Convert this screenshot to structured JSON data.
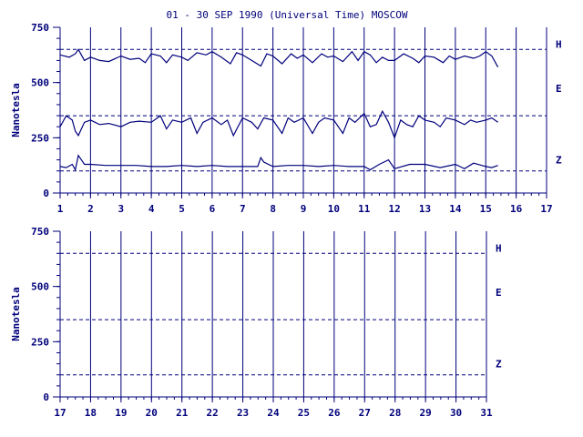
{
  "title": "01 - 30 SEP 1990 (Universal Time) MOSCOW",
  "colors": {
    "ink": "#00007b",
    "background": "#ffffff"
  },
  "chart_data": [
    {
      "type": "line",
      "ylabel": "Nanotesla",
      "xlim": [
        1,
        17
      ],
      "ylim": [
        0,
        750
      ],
      "x_ticks": [
        "1",
        "2",
        "3",
        "4",
        "5",
        "6",
        "7",
        "8",
        "9",
        "10",
        "11",
        "12",
        "13",
        "14",
        "15",
        "16",
        "17"
      ],
      "y_ticks": [
        "0",
        "250",
        "500",
        "750"
      ],
      "grid": "vertical lines at each day",
      "baselines": [
        {
          "name": "H",
          "value": 650
        },
        {
          "name": "E",
          "value": 350
        },
        {
          "name": "Z",
          "value": 100
        }
      ],
      "data_end_x": 15.4,
      "series": [
        {
          "name": "H",
          "x": [
            1.0,
            1.3,
            1.5,
            1.6,
            1.8,
            2.0,
            2.3,
            2.6,
            3.0,
            3.3,
            3.6,
            3.8,
            4.0,
            4.3,
            4.5,
            4.7,
            5.0,
            5.2,
            5.5,
            5.8,
            6.0,
            6.3,
            6.6,
            6.8,
            7.0,
            7.3,
            7.6,
            7.8,
            8.0,
            8.3,
            8.6,
            8.8,
            9.0,
            9.3,
            9.6,
            9.8,
            10.0,
            10.3,
            10.6,
            10.8,
            11.0,
            11.2,
            11.4,
            11.6,
            11.8,
            12.0,
            12.3,
            12.6,
            12.8,
            13.0,
            13.3,
            13.6,
            13.8,
            14.0,
            14.3,
            14.6,
            14.8,
            15.0,
            15.2,
            15.4
          ],
          "values": [
            625,
            615,
            630,
            650,
            600,
            615,
            600,
            595,
            620,
            605,
            610,
            590,
            630,
            620,
            590,
            625,
            615,
            600,
            635,
            625,
            640,
            615,
            585,
            635,
            625,
            600,
            575,
            630,
            620,
            585,
            630,
            610,
            625,
            590,
            630,
            615,
            620,
            595,
            640,
            600,
            640,
            625,
            590,
            615,
            600,
            600,
            630,
            610,
            590,
            620,
            615,
            590,
            620,
            605,
            620,
            610,
            620,
            640,
            620,
            570
          ]
        },
        {
          "name": "E",
          "x": [
            1.0,
            1.2,
            1.4,
            1.5,
            1.6,
            1.8,
            2.0,
            2.3,
            2.6,
            3.0,
            3.3,
            3.6,
            4.0,
            4.3,
            4.5,
            4.7,
            5.0,
            5.3,
            5.5,
            5.7,
            6.0,
            6.3,
            6.5,
            6.7,
            7.0,
            7.3,
            7.5,
            7.7,
            8.0,
            8.3,
            8.5,
            8.7,
            9.0,
            9.3,
            9.5,
            9.7,
            10.0,
            10.3,
            10.5,
            10.7,
            11.0,
            11.2,
            11.4,
            11.6,
            11.8,
            12.0,
            12.2,
            12.4,
            12.6,
            12.8,
            13.0,
            13.3,
            13.5,
            13.7,
            14.0,
            14.3,
            14.5,
            14.7,
            15.0,
            15.2,
            15.4
          ],
          "values": [
            300,
            350,
            330,
            280,
            260,
            320,
            330,
            310,
            315,
            300,
            320,
            325,
            320,
            350,
            290,
            330,
            320,
            340,
            270,
            320,
            340,
            310,
            330,
            260,
            340,
            320,
            290,
            340,
            330,
            270,
            340,
            320,
            340,
            270,
            320,
            340,
            330,
            270,
            340,
            320,
            360,
            300,
            310,
            370,
            320,
            250,
            330,
            310,
            300,
            350,
            330,
            320,
            300,
            340,
            330,
            310,
            330,
            320,
            330,
            340,
            320
          ]
        },
        {
          "name": "Z",
          "x": [
            1.0,
            1.2,
            1.4,
            1.5,
            1.6,
            1.8,
            2.0,
            2.5,
            3.0,
            3.5,
            4.0,
            4.5,
            5.0,
            5.5,
            6.0,
            6.5,
            7.0,
            7.5,
            7.6,
            7.7,
            8.0,
            8.5,
            9.0,
            9.5,
            10.0,
            10.5,
            11.0,
            11.2,
            11.5,
            11.8,
            12.0,
            12.5,
            13.0,
            13.5,
            14.0,
            14.3,
            14.6,
            15.0,
            15.2,
            15.4
          ],
          "values": [
            120,
            115,
            130,
            105,
            170,
            130,
            130,
            125,
            125,
            125,
            120,
            120,
            125,
            120,
            125,
            120,
            120,
            120,
            160,
            140,
            120,
            125,
            125,
            120,
            125,
            120,
            120,
            105,
            130,
            150,
            110,
            130,
            130,
            115,
            130,
            110,
            135,
            120,
            115,
            125
          ]
        }
      ]
    },
    {
      "type": "line",
      "ylabel": "Nanotesla",
      "xlim": [
        17,
        31
      ],
      "ylim": [
        0,
        750
      ],
      "x_ticks": [
        "17",
        "18",
        "19",
        "20",
        "21",
        "22",
        "23",
        "24",
        "25",
        "26",
        "27",
        "28",
        "29",
        "30",
        "31"
      ],
      "y_ticks": [
        "0",
        "250",
        "500",
        "750"
      ],
      "grid": "vertical lines at each day",
      "baselines": [
        {
          "name": "H",
          "value": 650
        },
        {
          "name": "E",
          "value": 350
        },
        {
          "name": "Z",
          "value": 100
        }
      ],
      "series": []
    }
  ]
}
